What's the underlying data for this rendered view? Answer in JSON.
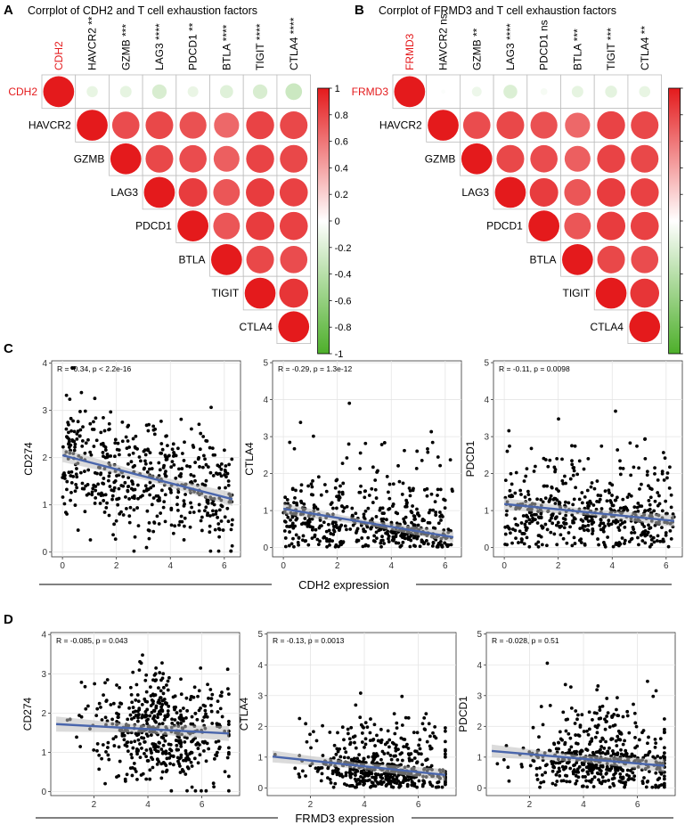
{
  "panel_letters": [
    "A",
    "B",
    "C",
    "D"
  ],
  "colors": {
    "positive": "#e41a1c",
    "zero": "#ffffff",
    "negative": "#4daf2a",
    "regression_line": "#4a66ac",
    "confidence_band": "#bdbdbd",
    "points": "#000000",
    "label_highlight": "#e41a1c",
    "grid": "#e5e5e5"
  },
  "icons": {
    "corr_glyph": "circle",
    "point_glyph": "dot"
  },
  "chart_data": [
    {
      "id": "A",
      "type": "heatmap",
      "subtype": "upper-triangle correlation plot",
      "title": "Corrplot of CDH2 and T cell exhaustion factors",
      "variables": [
        "CDH2",
        "HAVCR2",
        "GZMB",
        "LAG3",
        "PDCD1",
        "BTLA",
        "TIGIT",
        "CTLA4"
      ],
      "column_labels": [
        "CDH2",
        "HAVCR2 **",
        "GZMB ***",
        "LAG3 ****",
        "PDCD1 **",
        "BTLA ****",
        "TIGIT ****",
        "CTLA4 ****"
      ],
      "highlight_variable": "CDH2",
      "matrix": [
        [
          1.0,
          -0.13,
          -0.14,
          -0.22,
          -0.12,
          -0.18,
          -0.22,
          -0.29
        ],
        [
          null,
          1.0,
          0.78,
          0.8,
          0.76,
          0.66,
          0.82,
          0.8
        ],
        [
          null,
          null,
          1.0,
          0.8,
          0.78,
          0.7,
          0.82,
          0.8
        ],
        [
          null,
          null,
          null,
          1.0,
          0.85,
          0.74,
          0.85,
          0.83
        ],
        [
          null,
          null,
          null,
          null,
          1.0,
          0.74,
          0.85,
          0.83
        ],
        [
          null,
          null,
          null,
          null,
          null,
          1.0,
          0.8,
          0.78
        ],
        [
          null,
          null,
          null,
          null,
          null,
          null,
          1.0,
          0.88
        ],
        [
          null,
          null,
          null,
          null,
          null,
          null,
          null,
          1.0
        ]
      ],
      "colorbar": {
        "range": [
          -1,
          1
        ],
        "ticks": [
          "1",
          "0.8",
          "0.6",
          "0.4",
          "0.2",
          "0",
          "-0.2",
          "-0.4",
          "-0.6",
          "-0.8",
          "-1"
        ]
      }
    },
    {
      "id": "B",
      "type": "heatmap",
      "subtype": "upper-triangle correlation plot",
      "title": "Corrplot of FRMD3 and T cell exhaustion factors",
      "variables": [
        "FRMD3",
        "HAVCR2",
        "GZMB",
        "LAG3",
        "PDCD1",
        "BTLA",
        "TIGIT",
        "CTLA4"
      ],
      "column_labels": [
        "FRMD3",
        "HAVCR2 ns",
        "GZMB **",
        "LAG3 ****",
        "PDCD1 ns",
        "BTLA ***",
        "TIGIT ***",
        "CTLA4 **"
      ],
      "highlight_variable": "FRMD3",
      "matrix": [
        [
          1.0,
          -0.02,
          -0.1,
          -0.2,
          -0.05,
          -0.14,
          -0.15,
          -0.13
        ],
        [
          null,
          1.0,
          0.78,
          0.8,
          0.76,
          0.66,
          0.82,
          0.8
        ],
        [
          null,
          null,
          1.0,
          0.8,
          0.78,
          0.7,
          0.82,
          0.8
        ],
        [
          null,
          null,
          null,
          1.0,
          0.85,
          0.74,
          0.85,
          0.83
        ],
        [
          null,
          null,
          null,
          null,
          1.0,
          0.74,
          0.85,
          0.83
        ],
        [
          null,
          null,
          null,
          null,
          null,
          1.0,
          0.8,
          0.78
        ],
        [
          null,
          null,
          null,
          null,
          null,
          null,
          1.0,
          0.88
        ],
        [
          null,
          null,
          null,
          null,
          null,
          null,
          null,
          1.0
        ]
      ],
      "colorbar": {
        "range": [
          -1,
          1
        ],
        "ticks": [
          "1",
          "0.8",
          "0.6",
          "0.4",
          "0.2",
          "0",
          "-0.2",
          "-0.4",
          "-0.6",
          "-0.8",
          "-1"
        ]
      }
    },
    {
      "id": "C1",
      "type": "scatter",
      "panel": "C",
      "xlabel": "",
      "ylabel": "CD274",
      "annotation": "R = -0.34, p < 2.2e-16",
      "xlim": [
        -0.4,
        6.6
      ],
      "ylim": [
        -0.1,
        4.05
      ],
      "xticks": [
        "0",
        "2",
        "4",
        "6"
      ],
      "yticks": [
        "0",
        "1",
        "2",
        "3",
        "4"
      ],
      "regression": {
        "x": [
          0,
          6.3
        ],
        "y": [
          2.05,
          1.12
        ],
        "band": 0.09
      },
      "n_points": 520,
      "seed": 11,
      "x_model": "uniform",
      "x_range": [
        0,
        6.3
      ],
      "y_center": [
        2.05,
        1.12
      ],
      "y_sd": 0.65,
      "y_clip": [
        0,
        3.9
      ]
    },
    {
      "id": "C2",
      "type": "scatter",
      "panel": "C",
      "xlabel": "",
      "ylabel": "CTLA4",
      "annotation": "R = -0.29, p = 1.3e-12",
      "xlim": [
        -0.4,
        6.6
      ],
      "ylim": [
        -0.25,
        5.05
      ],
      "xticks": [
        "0",
        "2",
        "4",
        "6"
      ],
      "yticks": [
        "0",
        "1",
        "2",
        "3",
        "4",
        "5"
      ],
      "regression": {
        "x": [
          0,
          6.3
        ],
        "y": [
          1.05,
          0.28
        ],
        "band": 0.09
      },
      "n_points": 520,
      "seed": 23,
      "x_model": "uniform",
      "x_range": [
        0,
        6.3
      ],
      "y_center": [
        0.9,
        0.35
      ],
      "y_sd": 0.8,
      "y_clip": [
        0,
        4.9
      ],
      "y_skew": true
    },
    {
      "id": "C3",
      "type": "scatter",
      "panel": "C",
      "xlabel": "",
      "ylabel": "PDCD1",
      "annotation": "R = -0.11, p = 0.0098",
      "xlim": [
        -0.4,
        6.6
      ],
      "ylim": [
        -0.25,
        5.05
      ],
      "xticks": [
        "0",
        "2",
        "4",
        "6"
      ],
      "yticks": [
        "0",
        "1",
        "2",
        "3",
        "4",
        "5"
      ],
      "regression": {
        "x": [
          0,
          6.3
        ],
        "y": [
          1.18,
          0.72
        ],
        "band": 0.1
      },
      "n_points": 520,
      "seed": 37,
      "x_model": "uniform",
      "x_range": [
        0,
        6.3
      ],
      "y_center": [
        1.1,
        0.75
      ],
      "y_sd": 0.85,
      "y_clip": [
        0,
        5.0
      ],
      "y_skew": true
    },
    {
      "id": "D1",
      "type": "scatter",
      "panel": "D",
      "xlabel": "",
      "ylabel": "CD274",
      "annotation": "R = -0.085, p = 0.043",
      "xlim": [
        0.4,
        7.4
      ],
      "ylim": [
        -0.1,
        4.05
      ],
      "xticks": [
        "2",
        "4",
        "6"
      ],
      "yticks": [
        "0",
        "1",
        "2",
        "3",
        "4"
      ],
      "regression": {
        "x": [
          0.6,
          7.0
        ],
        "y": [
          1.72,
          1.48
        ],
        "band": 0.12
      },
      "n_points": 520,
      "seed": 41,
      "x_model": "normal",
      "x_mean": 4.5,
      "x_sd": 1.3,
      "x_range": [
        0.6,
        7.0
      ],
      "y_center": [
        1.7,
        1.5
      ],
      "y_sd": 0.7,
      "y_clip": [
        0,
        3.9
      ]
    },
    {
      "id": "D2",
      "type": "scatter",
      "panel": "D",
      "xlabel": "",
      "ylabel": "CTLA4",
      "annotation": "R = -0.13, p = 0.0013",
      "xlim": [
        0.4,
        7.4
      ],
      "ylim": [
        -0.25,
        5.05
      ],
      "xticks": [
        "2",
        "4",
        "6"
      ],
      "yticks": [
        "0",
        "1",
        "2",
        "3",
        "4",
        "5"
      ],
      "regression": {
        "x": [
          0.6,
          7.0
        ],
        "y": [
          1.02,
          0.42
        ],
        "band": 0.12
      },
      "n_points": 520,
      "seed": 53,
      "x_model": "normal",
      "x_mean": 4.6,
      "x_sd": 1.3,
      "x_range": [
        0.6,
        7.0
      ],
      "y_center": [
        0.9,
        0.45
      ],
      "y_sd": 0.8,
      "y_clip": [
        0,
        4.9
      ],
      "y_skew": true
    },
    {
      "id": "D3",
      "type": "scatter",
      "panel": "D",
      "xlabel": "",
      "ylabel": "PDCD1",
      "annotation": "R = -0.028, p = 0.51",
      "xlim": [
        0.4,
        7.4
      ],
      "ylim": [
        -0.25,
        5.05
      ],
      "xticks": [
        "2",
        "4",
        "6"
      ],
      "yticks": [
        "0",
        "1",
        "2",
        "3",
        "4",
        "5"
      ],
      "regression": {
        "x": [
          0.6,
          7.0
        ],
        "y": [
          1.2,
          0.72
        ],
        "band": 0.13
      },
      "n_points": 520,
      "seed": 67,
      "x_model": "normal",
      "x_mean": 4.6,
      "x_sd": 1.3,
      "x_range": [
        0.6,
        7.0
      ],
      "y_center": [
        1.1,
        0.8
      ],
      "y_sd": 0.85,
      "y_clip": [
        0,
        5.0
      ],
      "y_skew": true
    }
  ],
  "shared_xlabels": {
    "C": "CDH2 expression",
    "D": "FRMD3 expression"
  }
}
